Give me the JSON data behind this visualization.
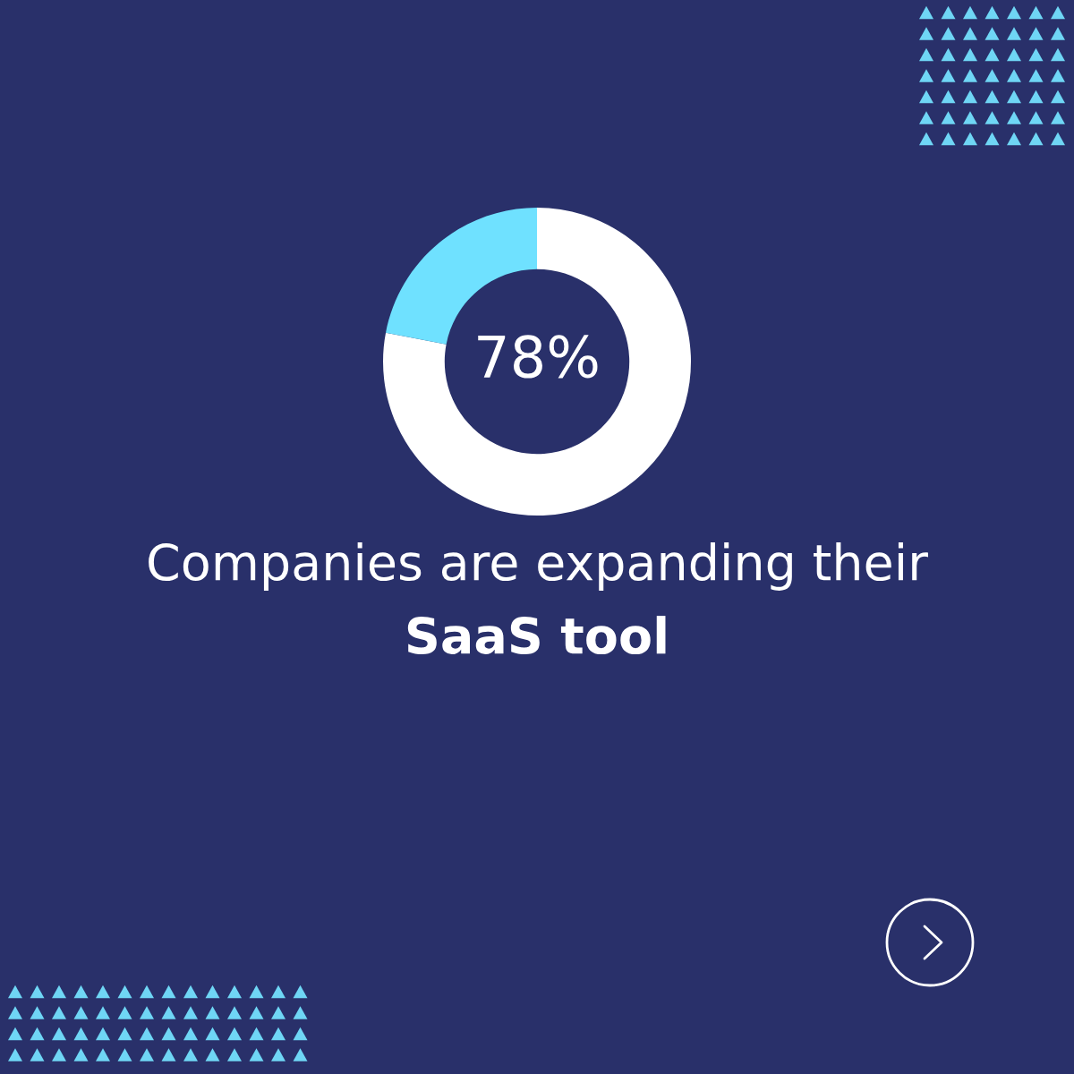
{
  "chart_data": {
    "type": "donut",
    "title": "Companies are expanding their",
    "subtitle": "SaaS tool",
    "categories": [
      null,
      null
    ],
    "values": [
      78,
      22
    ],
    "colors": [
      "#ffffff",
      "#6fe1ff"
    ],
    "value_labels": [
      "78%",
      null
    ]
  }
}
